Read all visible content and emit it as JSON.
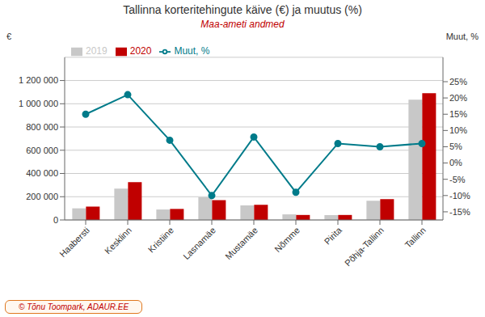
{
  "chart_data": {
    "type": "bar",
    "title": "Tallinna korteritehingute käive (€) ja muutus (%)",
    "subtitle": "Maa-ameti andmed",
    "ylabel": "€",
    "y2label": "Muut, %",
    "annotations": [
      "© Tõnu Toompark, ADAUR.EE"
    ],
    "categories": [
      "Haabersti",
      "Kesklinn",
      "Kristiine",
      "Lasnamäe",
      "Mustamäe",
      "Nõmme",
      "Pirita",
      "Põhja-Tallinn",
      "Tallinn"
    ],
    "series": [
      {
        "name": "2019",
        "type": "bar",
        "color": "#c8c8c8",
        "values": [
          100000,
          270000,
          90000,
          195000,
          125000,
          48000,
          42000,
          165000,
          1035000
        ]
      },
      {
        "name": "2020",
        "type": "bar",
        "color": "#c00000",
        "values": [
          115000,
          325000,
          95000,
          170000,
          130000,
          43000,
          43000,
          180000,
          1090000
        ]
      },
      {
        "name": "Muut, %",
        "type": "line",
        "axis": "y2",
        "color": "#007b8a",
        "marker": "circle",
        "values": [
          15,
          21,
          7,
          -10,
          8,
          -9,
          6,
          5,
          6
        ]
      }
    ],
    "ylim": [
      0,
      1400000
    ],
    "yticks": [
      0,
      {
        "value": 200000,
        "label": "200 000"
      },
      {
        "value": 400000,
        "label": "400 000"
      },
      {
        "value": 600000,
        "label": "600 000"
      },
      {
        "value": 800000,
        "label": "800 000"
      },
      {
        "value": 1000000,
        "label": "1 000 000"
      },
      {
        "value": 1200000,
        "label": "1 200 000"
      }
    ],
    "y2lim": [
      -17.5,
      32.5
    ],
    "y2ticks": [
      {
        "value": -15,
        "label": "-15%"
      },
      {
        "value": -10,
        "label": "-10%"
      },
      {
        "value": -5,
        "label": "-5%"
      },
      {
        "value": 0,
        "label": "0%"
      },
      {
        "value": 5,
        "label": "5%"
      },
      {
        "value": 10,
        "label": "10%"
      },
      {
        "value": 15,
        "label": "15%"
      },
      {
        "value": 20,
        "label": "20%"
      },
      {
        "value": 25,
        "label": "25%"
      }
    ],
    "grid": true,
    "legend": "upper left"
  }
}
